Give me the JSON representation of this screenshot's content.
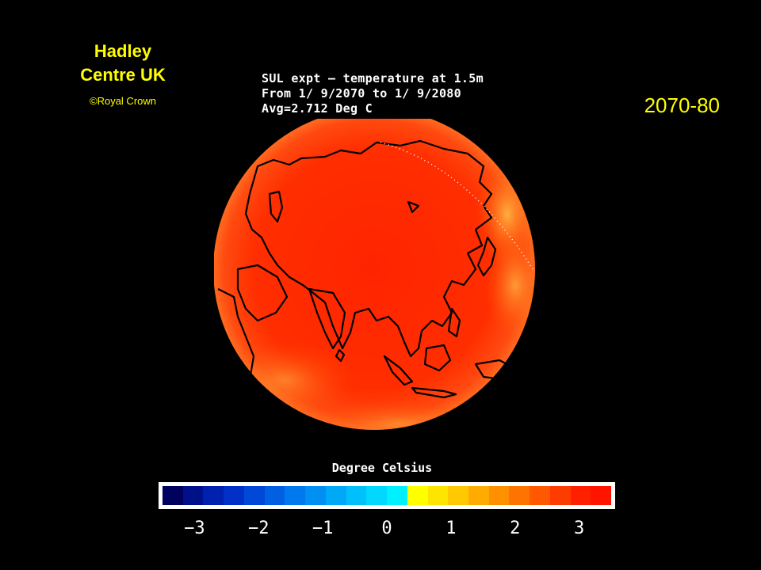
{
  "credit": {
    "org_line1": "Hadley",
    "org_line2": "Centre UK",
    "copyright": "©Royal Crown"
  },
  "period": "2070-80",
  "plot_title": {
    "line1": "SUL expt — temperature at 1.5m",
    "line2": "From 1/ 9/2070 to 1/ 9/2080",
    "line3": "Avg=2.712 Deg C"
  },
  "map": {
    "projection": "orthographic",
    "region": "Asia",
    "continent_outline_color": "#000000",
    "dominant_fill": "#ff2a00",
    "warmest_fill": "#ff9a20"
  },
  "colorbar": {
    "label": "Degree Celsius",
    "tick_labels": [
      "−3",
      "−2",
      "−1",
      "0",
      "1",
      "2",
      "3"
    ],
    "tick_values": [
      -3,
      -2,
      -1,
      0,
      1,
      2,
      3
    ],
    "range": [
      -3.5,
      3.5
    ],
    "colors": [
      "#000060",
      "#00108a",
      "#0020b0",
      "#0030c8",
      "#0048d8",
      "#0060e4",
      "#0078ee",
      "#0090f4",
      "#00a8f8",
      "#00c0fc",
      "#00d8ff",
      "#00f0ff",
      "#ffff00",
      "#ffe400",
      "#ffc800",
      "#ffac00",
      "#ff9000",
      "#ff7400",
      "#ff5800",
      "#ff3c00",
      "#ff2000",
      "#ff1400"
    ]
  }
}
